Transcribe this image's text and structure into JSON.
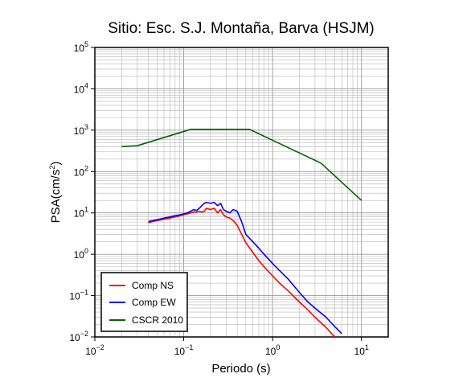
{
  "chart_data": {
    "type": "line",
    "title": "Sitio: Esc. S.J. Montaña, Barva (HSJM)",
    "xlabel": "Periodo (s)",
    "ylabel_main": "PSA(cm/s",
    "ylabel_sup": "2",
    "ylabel_close": ")",
    "x_scale": "log",
    "y_scale": "log",
    "xlim": [
      0.01,
      20
    ],
    "ylim": [
      0.01,
      100000
    ],
    "grid": true,
    "legend_position": "bottom-left",
    "x_ticks": [
      {
        "value": 0.01,
        "base": "10",
        "exp": "−2"
      },
      {
        "value": 0.1,
        "base": "10",
        "exp": "−1"
      },
      {
        "value": 1,
        "base": "10",
        "exp": "0"
      },
      {
        "value": 10,
        "base": "10",
        "exp": "1"
      }
    ],
    "y_ticks": [
      {
        "value": 0.01,
        "base": "10",
        "exp": "−2"
      },
      {
        "value": 0.1,
        "base": "10",
        "exp": "−1"
      },
      {
        "value": 1,
        "base": "10",
        "exp": "0"
      },
      {
        "value": 10,
        "base": "10",
        "exp": "1"
      },
      {
        "value": 100,
        "base": "10",
        "exp": "2"
      },
      {
        "value": 1000,
        "base": "10",
        "exp": "3"
      },
      {
        "value": 10000,
        "base": "10",
        "exp": "4"
      },
      {
        "value": 100000,
        "base": "10",
        "exp": "5"
      }
    ],
    "series": [
      {
        "name": "Comp NS",
        "color": "#ff0000",
        "x": [
          0.04,
          0.05,
          0.06,
          0.07,
          0.08,
          0.09,
          0.1,
          0.11,
          0.12,
          0.13,
          0.14,
          0.15,
          0.16,
          0.17,
          0.18,
          0.2,
          0.22,
          0.24,
          0.26,
          0.28,
          0.3,
          0.33,
          0.36,
          0.4,
          0.45,
          0.5,
          0.6,
          0.7,
          0.8,
          1,
          1.2,
          1.5,
          2,
          2.5,
          3,
          4,
          5,
          6
        ],
        "y": [
          5.8,
          6.5,
          7,
          7.5,
          8,
          8.5,
          9,
          9.5,
          10,
          10.5,
          10.5,
          11,
          10.5,
          11,
          13,
          12,
          13,
          10,
          12,
          9,
          8,
          7.5,
          6.5,
          5,
          3,
          1.9,
          1.1,
          0.7,
          0.5,
          0.3,
          0.2,
          0.13,
          0.07,
          0.045,
          0.03,
          0.017,
          0.01,
          0.0065
        ]
      },
      {
        "name": "Comp EW",
        "color": "#0000ff",
        "x": [
          0.04,
          0.05,
          0.06,
          0.07,
          0.08,
          0.09,
          0.1,
          0.11,
          0.12,
          0.13,
          0.14,
          0.15,
          0.16,
          0.17,
          0.18,
          0.2,
          0.22,
          0.24,
          0.26,
          0.28,
          0.3,
          0.33,
          0.36,
          0.4,
          0.45,
          0.5,
          0.6,
          0.7,
          0.8,
          1,
          1.2,
          1.5,
          2,
          2.5,
          3,
          4,
          5,
          6,
          7
        ],
        "y": [
          6.2,
          6.8,
          7.5,
          8,
          8.5,
          9,
          9.5,
          10,
          11,
          12,
          11.5,
          13,
          15,
          17,
          18,
          17,
          18,
          15,
          17,
          12,
          11,
          10,
          12,
          11,
          6,
          3,
          2,
          1.4,
          1,
          0.6,
          0.4,
          0.25,
          0.12,
          0.07,
          0.05,
          0.03,
          0.018,
          0.012,
          0.0085
        ]
      },
      {
        "name": "CSCR 2010",
        "color": "#006400",
        "x": [
          0.02,
          0.03,
          0.12,
          0.55,
          3.5,
          10
        ],
        "y": [
          400,
          420,
          1050,
          1050,
          160,
          20
        ]
      }
    ]
  }
}
